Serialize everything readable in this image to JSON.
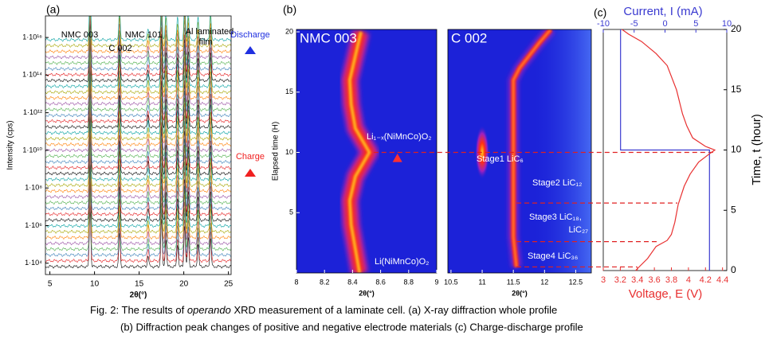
{
  "chart_data": [
    {
      "type": "waterfall",
      "panel": "(a)",
      "x_label": "2θ(°)",
      "y_label": "Intensity (cps)",
      "xlim": [
        4.5,
        25.3
      ],
      "xticks": [
        5,
        10,
        15,
        20,
        25
      ],
      "log_y": true,
      "ylim": [
        2500,
        1.4e+17
      ],
      "yticks": [
        {
          "value": 10000,
          "label": "1·10⁴"
        },
        {
          "value": 1000000,
          "label": "1·10⁶"
        },
        {
          "value": 100000000,
          "label": "1·10⁸"
        },
        {
          "value": 10000000000,
          "label": "1·10¹⁰"
        },
        {
          "value": 1000000000000,
          "label": "1·10¹²"
        },
        {
          "value": 100000000000000,
          "label": "1·10¹⁴"
        },
        {
          "value": 10000000000000000,
          "label": "1·10¹⁶"
        }
      ],
      "scan_count": 40,
      "peaks": [
        {
          "position": 9.5,
          "log_height": 3.0
        },
        {
          "position": 12.8,
          "log_height": 1.8
        },
        {
          "position": 16.0,
          "log_height": 0.6
        },
        {
          "position": 17.5,
          "log_height": 2.5
        },
        {
          "position": 18.0,
          "log_height": 1.5
        },
        {
          "position": 19.3,
          "log_height": 1.2
        },
        {
          "position": 20.1,
          "log_height": 2.2
        },
        {
          "position": 20.5,
          "log_height": 1.5
        },
        {
          "position": 21.6,
          "log_height": 1.2
        },
        {
          "position": 23.0,
          "log_height": 1.5
        }
      ],
      "trace_colors": [
        "#000000",
        "#e41a1c",
        "#377eb8",
        "#4daf4a",
        "#984ea3",
        "#ff7f00",
        "#a6a600",
        "#00a0a0"
      ],
      "annotations": [
        "NMC 003",
        "C 002",
        "NMC 101",
        "Al laminated",
        "film"
      ],
      "arrows": [
        {
          "text": "Discharge",
          "color": "#2030e0"
        },
        {
          "text": "Charge",
          "color": "#f02020"
        }
      ]
    },
    {
      "type": "heatmap",
      "panel": "(b)",
      "title": "NMC 003",
      "x_label": "2θ(°)",
      "y_label": "Elapsed time (H)",
      "xlim": [
        8,
        9
      ],
      "xticks": [
        8,
        8.2,
        8.4,
        8.6,
        8.8,
        9
      ],
      "ylim": [
        0,
        20.2
      ],
      "yticks": [
        5,
        10,
        15,
        20
      ],
      "ridge": {
        "values": [
          8.45,
          8.42,
          8.39,
          8.38,
          8.42,
          8.52,
          8.42,
          8.39,
          8.38,
          8.42,
          8.46
        ],
        "t": [
          0,
          2,
          4,
          6,
          8,
          10,
          12,
          14,
          16,
          18,
          20
        ]
      },
      "annotations": [
        "Li₁₋ₓ(NiMnCo)O₂",
        "Li(NiMnCo)O₂"
      ]
    },
    {
      "type": "heatmap",
      "title": "C 002",
      "x_label": "2θ(°)",
      "xlim": [
        10.45,
        12.75
      ],
      "xticks": [
        10.5,
        11,
        11.5,
        12,
        12.5
      ],
      "ylim": [
        0,
        20.2
      ],
      "ridge": {
        "values": [
          11.55,
          11.5,
          11.5,
          11.5,
          11.6,
          11.9,
          12.1
        ],
        "t": [
          0.5,
          3,
          10,
          16,
          17,
          19,
          20.2
        ]
      },
      "spot": {
        "value": 11.0,
        "t": 10
      },
      "annotations": [
        "Stage1 LiC₆",
        "Stage2 LiC₁₂",
        "Stage3 LiC₁₈,",
        "LiC₂₇",
        "Stage4 LiC₃₆"
      ]
    },
    {
      "type": "line",
      "panel": "(c)",
      "x_label": "Voltage, E (V)",
      "x2_label": "Current, I (mA)",
      "y_label": "Time, t (hour)",
      "xlim": [
        3,
        4.45
      ],
      "xticks": [
        3,
        3.2,
        3.4,
        3.6,
        3.8,
        4,
        4.2,
        4.4
      ],
      "x2lim": [
        -10,
        10
      ],
      "x2ticks": [
        -10,
        -5,
        0,
        5,
        10
      ],
      "ylim": [
        0,
        20
      ],
      "yticks": [
        0,
        5,
        10,
        15,
        20
      ],
      "current": {
        "color": "#3a3ad0",
        "values": [
          -7.2,
          -7.2,
          7.2,
          7.2
        ],
        "t": [
          20,
          10,
          10,
          0
        ]
      },
      "voltage": {
        "color": "#e83030",
        "values": [
          3.38,
          3.42,
          3.52,
          3.62,
          3.75,
          3.8,
          3.84,
          3.88,
          3.95,
          4.02,
          4.12,
          4.25,
          4.31,
          4.2,
          4.05,
          3.98,
          3.93,
          3.86,
          3.75,
          3.62,
          3.45,
          3.3,
          3.22
        ],
        "t": [
          0,
          0.3,
          1,
          2,
          2.5,
          3,
          4,
          5.5,
          7,
          8,
          9,
          9.7,
          10,
          10.3,
          11,
          12,
          13,
          15,
          17,
          18,
          19,
          19.6,
          20
        ]
      },
      "guide_times": [
        9.8,
        5.6,
        2.4,
        0.3
      ]
    }
  ],
  "caption": {
    "line1": [
      "Fig. 2: The results of ",
      "operando",
      " XRD measurement of a laminate cell. (a) X-ray diffraction whole profile"
    ],
    "line2": "(b) Diffraction peak changes of positive and negative electrode materials (c) Charge-discharge profile"
  }
}
